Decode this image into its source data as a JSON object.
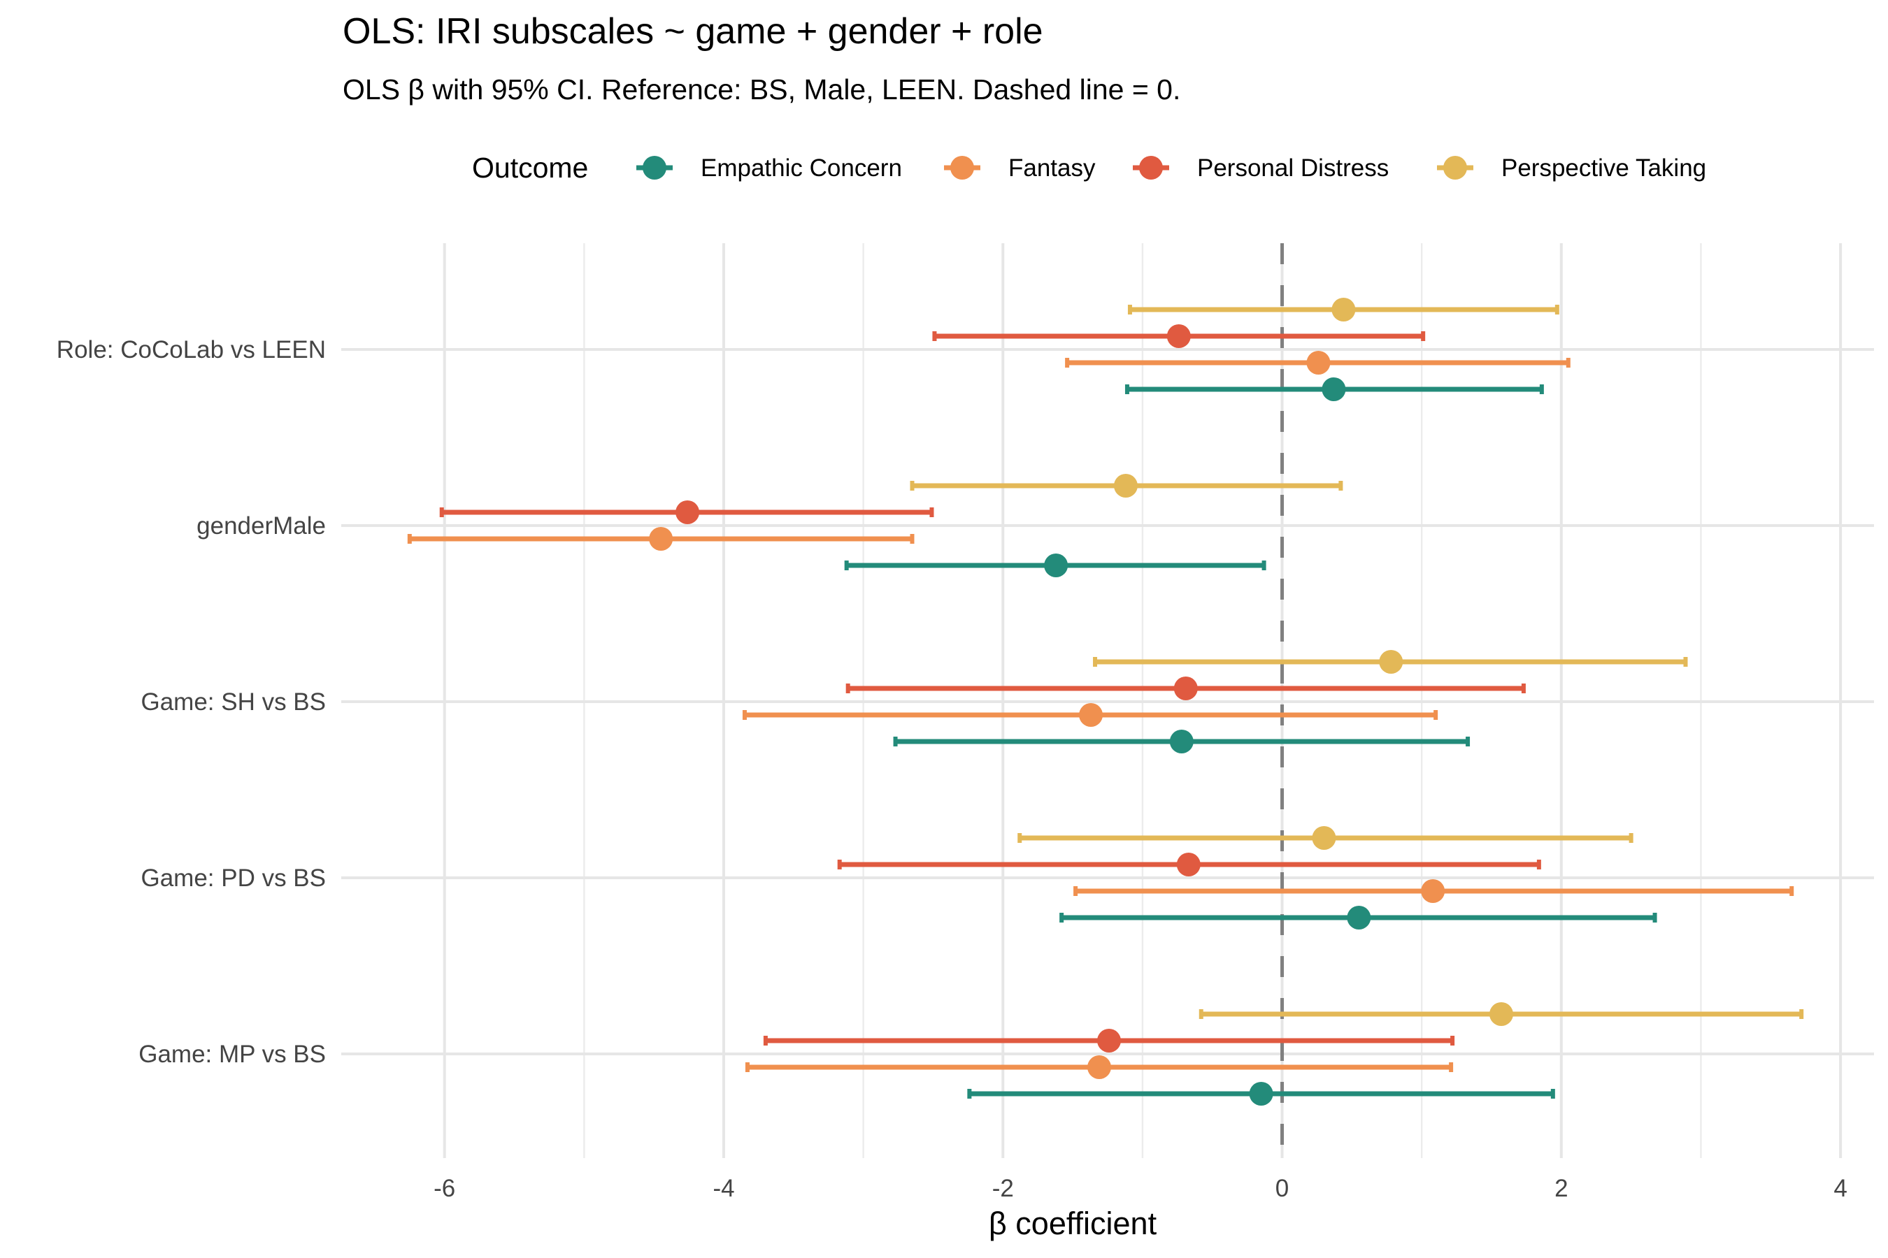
{
  "chart_data": {
    "type": "forest",
    "title": "OLS: IRI subscales ~ game + gender + role",
    "subtitle": "OLS β with 95% CI. Reference: BS, Male, LEEN. Dashed line = 0.",
    "xlabel": "β coefficient",
    "ylabel": "",
    "xlim": [
      -6.74,
      4.24
    ],
    "xticks": [
      -6,
      -4,
      -2,
      0,
      2,
      4
    ],
    "xtick_labels": [
      "-6",
      "-4",
      "-2",
      "0",
      "2",
      "4"
    ],
    "reference_line": 0,
    "grid": true,
    "legend": {
      "title": "Outcome",
      "position": "top"
    },
    "categories": [
      "Role: CoCoLab vs LEEN",
      "genderMale",
      "Game: SH vs BS",
      "Game: PD vs BS",
      "Game: MP vs BS"
    ],
    "series": [
      {
        "name": "Empathic Concern",
        "color": "#238B7A",
        "estimate": [
          0.37,
          -1.62,
          -0.72,
          0.55,
          -0.15
        ],
        "lower": [
          -1.11,
          -3.12,
          -2.77,
          -1.58,
          -2.24
        ],
        "upper": [
          1.86,
          -0.13,
          1.33,
          2.67,
          1.94
        ]
      },
      {
        "name": "Fantasy",
        "color": "#F0904F",
        "estimate": [
          0.26,
          -4.45,
          -1.37,
          1.08,
          -1.31
        ],
        "lower": [
          -1.54,
          -6.25,
          -3.85,
          -1.48,
          -3.83
        ],
        "upper": [
          2.05,
          -2.65,
          1.1,
          3.65,
          1.21
        ]
      },
      {
        "name": "Personal Distress",
        "color": "#E05A40",
        "estimate": [
          -0.74,
          -4.26,
          -0.69,
          -0.67,
          -1.24
        ],
        "lower": [
          -2.49,
          -6.02,
          -3.11,
          -3.17,
          -3.7
        ],
        "upper": [
          1.01,
          -2.51,
          1.73,
          1.84,
          1.22
        ]
      },
      {
        "name": "Perspective Taking",
        "color": "#E3B857",
        "estimate": [
          0.44,
          -1.12,
          0.78,
          0.3,
          1.57
        ],
        "lower": [
          -1.09,
          -2.65,
          -1.34,
          -1.88,
          -0.58
        ],
        "upper": [
          1.97,
          0.42,
          2.89,
          2.5,
          3.72
        ]
      }
    ]
  }
}
